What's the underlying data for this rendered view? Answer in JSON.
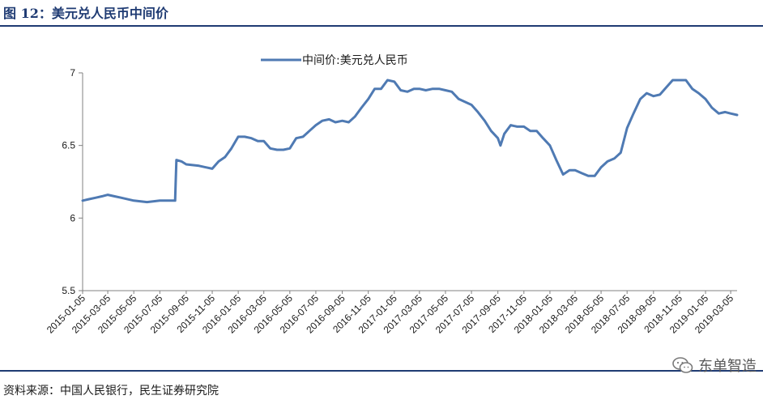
{
  "header": {
    "figure_title": "图 12：美元兑人民币中间价"
  },
  "footer": {
    "source_note": "资料来源：中国人民银行，民生证券研究院",
    "watermark_text": "东单智造",
    "watermark_icon": "wechat-icon"
  },
  "colors": {
    "series_line": "#4f7ab3",
    "title_text": "#1f3b73",
    "rule": "#1f3b73",
    "axis": "#808080"
  },
  "chart_data": {
    "type": "line",
    "title": "",
    "xlabel": "",
    "ylabel": "",
    "ylim": [
      5.5,
      7
    ],
    "yticks": [
      5.5,
      6,
      6.5,
      7
    ],
    "ytick_labels": [
      "5.5",
      "6",
      "6.5",
      "7"
    ],
    "xlim": [
      "2015-01-05",
      "2019-03-20"
    ],
    "xticks": [
      "2015-01-05",
      "2015-03-05",
      "2015-05-05",
      "2015-07-05",
      "2015-09-05",
      "2015-11-05",
      "2016-01-05",
      "2016-03-05",
      "2016-05-05",
      "2016-07-05",
      "2016-09-05",
      "2016-11-05",
      "2017-01-05",
      "2017-03-05",
      "2017-05-05",
      "2017-07-05",
      "2017-09-05",
      "2017-11-05",
      "2018-01-05",
      "2018-03-05",
      "2018-05-05",
      "2018-07-05",
      "2018-09-05",
      "2018-11-05",
      "2019-01-05",
      "2019-03-05"
    ],
    "grid": false,
    "legend": "top-center",
    "series": [
      {
        "name": "中间价:美元兑人民币",
        "x": [
          "2015-01-05",
          "2015-01-20",
          "2015-02-05",
          "2015-02-20",
          "2015-03-05",
          "2015-03-20",
          "2015-04-05",
          "2015-05-05",
          "2015-06-05",
          "2015-07-05",
          "2015-08-05",
          "2015-08-10",
          "2015-08-11",
          "2015-08-13",
          "2015-08-25",
          "2015-09-05",
          "2015-10-05",
          "2015-11-05",
          "2015-11-20",
          "2015-12-05",
          "2015-12-20",
          "2016-01-05",
          "2016-01-20",
          "2016-02-05",
          "2016-02-20",
          "2016-03-05",
          "2016-03-20",
          "2016-04-05",
          "2016-04-20",
          "2016-05-05",
          "2016-05-20",
          "2016-06-05",
          "2016-06-20",
          "2016-07-05",
          "2016-07-20",
          "2016-08-05",
          "2016-08-20",
          "2016-09-05",
          "2016-09-20",
          "2016-10-05",
          "2016-10-20",
          "2016-11-05",
          "2016-11-20",
          "2016-12-05",
          "2016-12-20",
          "2017-01-05",
          "2017-01-20",
          "2017-02-05",
          "2017-02-20",
          "2017-03-05",
          "2017-03-20",
          "2017-04-05",
          "2017-04-20",
          "2017-05-05",
          "2017-05-20",
          "2017-06-05",
          "2017-06-20",
          "2017-07-05",
          "2017-07-20",
          "2017-08-05",
          "2017-08-20",
          "2017-09-05",
          "2017-09-11",
          "2017-09-20",
          "2017-10-05",
          "2017-10-20",
          "2017-11-05",
          "2017-11-20",
          "2017-12-05",
          "2017-12-20",
          "2018-01-05",
          "2018-01-20",
          "2018-02-05",
          "2018-02-20",
          "2018-03-05",
          "2018-03-20",
          "2018-04-05",
          "2018-04-20",
          "2018-05-05",
          "2018-05-20",
          "2018-06-05",
          "2018-06-20",
          "2018-07-05",
          "2018-07-20",
          "2018-08-05",
          "2018-08-20",
          "2018-09-05",
          "2018-09-20",
          "2018-10-05",
          "2018-10-20",
          "2018-11-05",
          "2018-11-20",
          "2018-12-05",
          "2018-12-20",
          "2019-01-05",
          "2019-01-20",
          "2019-02-05",
          "2019-02-20",
          "2019-03-05",
          "2019-03-20"
        ],
        "y": [
          6.12,
          6.13,
          6.14,
          6.15,
          6.16,
          6.15,
          6.14,
          6.12,
          6.11,
          6.12,
          6.12,
          6.12,
          6.23,
          6.4,
          6.39,
          6.37,
          6.36,
          6.34,
          6.39,
          6.42,
          6.48,
          6.56,
          6.56,
          6.55,
          6.53,
          6.53,
          6.48,
          6.47,
          6.47,
          6.48,
          6.55,
          6.56,
          6.6,
          6.64,
          6.67,
          6.68,
          6.66,
          6.67,
          6.66,
          6.7,
          6.76,
          6.82,
          6.89,
          6.89,
          6.95,
          6.94,
          6.88,
          6.87,
          6.89,
          6.89,
          6.88,
          6.89,
          6.89,
          6.88,
          6.87,
          6.82,
          6.8,
          6.78,
          6.73,
          6.67,
          6.6,
          6.55,
          6.5,
          6.58,
          6.64,
          6.63,
          6.63,
          6.6,
          6.6,
          6.55,
          6.5,
          6.4,
          6.3,
          6.33,
          6.33,
          6.31,
          6.29,
          6.29,
          6.35,
          6.39,
          6.41,
          6.45,
          6.62,
          6.72,
          6.82,
          6.86,
          6.84,
          6.85,
          6.9,
          6.95,
          6.95,
          6.95,
          6.89,
          6.86,
          6.82,
          6.76,
          6.72,
          6.73,
          6.72,
          6.71
        ]
      }
    ]
  }
}
